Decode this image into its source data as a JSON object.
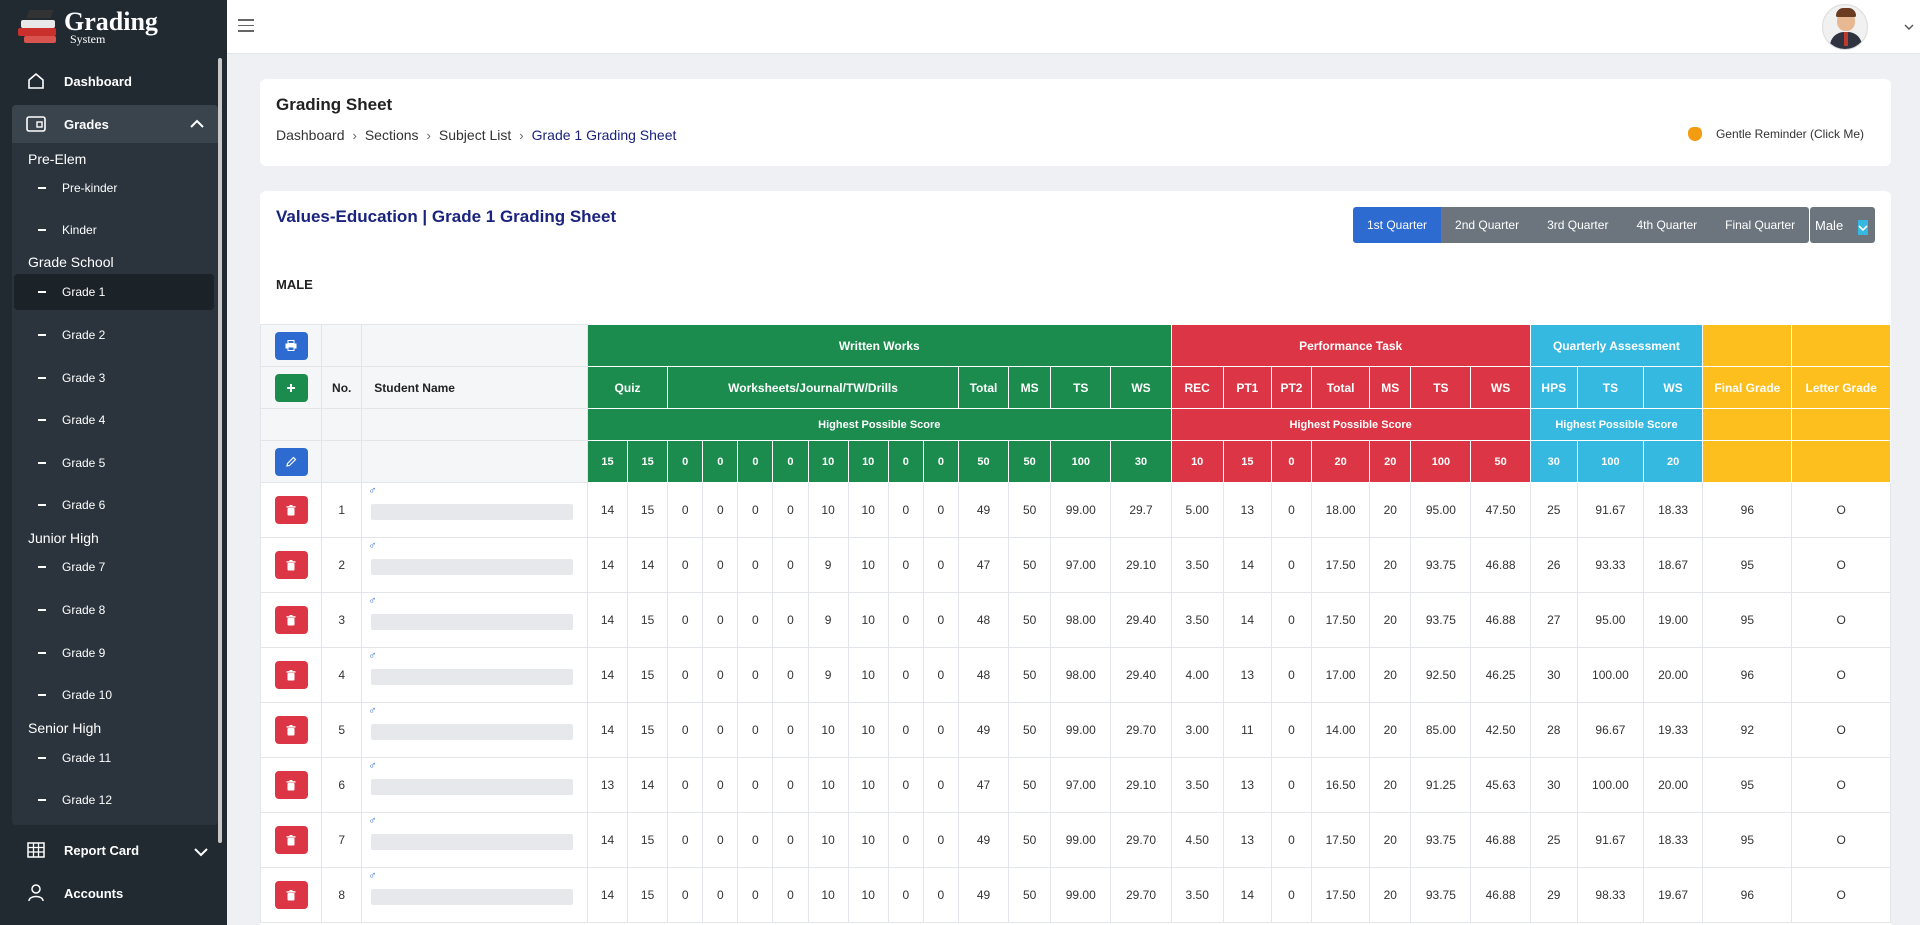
{
  "brand": {
    "title": "Grading",
    "subtitle": "System"
  },
  "sidebar": {
    "dashboard": "Dashboard",
    "grades": "Grades",
    "groups": [
      {
        "label": "Pre-Elem",
        "items": [
          "Pre-kinder",
          "Kinder"
        ]
      },
      {
        "label": "Grade School",
        "items": [
          "Grade 1",
          "Grade 2",
          "Grade 3",
          "Grade 4",
          "Grade 5",
          "Grade 6"
        ]
      },
      {
        "label": "Junior High",
        "items": [
          "Grade 7",
          "Grade 8",
          "Grade 9",
          "Grade 10"
        ]
      },
      {
        "label": "Senior High",
        "items": [
          "Grade 11",
          "Grade 12"
        ]
      }
    ],
    "active_item": "Grade 1",
    "report_card": "Report Card",
    "accounts": "Accounts"
  },
  "page": {
    "title": "Grading Sheet",
    "breadcrumb": [
      "Dashboard",
      "Sections",
      "Subject List",
      "Grade 1 Grading Sheet"
    ],
    "reminder": "Gentle Reminder (Click Me)"
  },
  "sheet": {
    "title": "Values-Education | Grade 1 Grading Sheet",
    "quarters": [
      "1st Quarter",
      "2nd Quarter",
      "3rd Quarter",
      "4th Quarter",
      "Final Quarter"
    ],
    "active_quarter": "1st Quarter",
    "sex_filter": "Male",
    "section_label": "MALE"
  },
  "table": {
    "groups": {
      "written": "Written Works",
      "performance": "Performance Task",
      "quarterly": "Quarterly Assessment"
    },
    "headers": {
      "no": "No.",
      "student_name": "Student Name",
      "quiz": "Quiz",
      "worksheets": "Worksheets/Journal/TW/Drills",
      "total": "Total",
      "ms": "MS",
      "ts": "TS",
      "ws": "WS",
      "rec": "REC",
      "pt1": "PT1",
      "pt2": "PT2",
      "hps": "HPS",
      "final_grade": "Final Grade",
      "letter_grade": "Letter Grade",
      "highest_possible_score": "Highest Possible Score"
    },
    "gender_symbol": "♂",
    "hps_values": [
      "15",
      "15",
      "0",
      "0",
      "0",
      "0",
      "10",
      "10",
      "0",
      "0",
      "50",
      "50",
      "100",
      "30",
      "10",
      "15",
      "0",
      "20",
      "20",
      "100",
      "50",
      "30",
      "100",
      "20"
    ],
    "rows": [
      {
        "no": "1",
        "cells": [
          "14",
          "15",
          "0",
          "0",
          "0",
          "0",
          "10",
          "10",
          "0",
          "0",
          "49",
          "50",
          "99.00",
          "29.7",
          "5.00",
          "13",
          "0",
          "18.00",
          "20",
          "95.00",
          "47.50",
          "25",
          "91.67",
          "18.33",
          "96",
          "O"
        ]
      },
      {
        "no": "2",
        "cells": [
          "14",
          "14",
          "0",
          "0",
          "0",
          "0",
          "9",
          "10",
          "0",
          "0",
          "47",
          "50",
          "97.00",
          "29.10",
          "3.50",
          "14",
          "0",
          "17.50",
          "20",
          "93.75",
          "46.88",
          "26",
          "93.33",
          "18.67",
          "95",
          "O"
        ]
      },
      {
        "no": "3",
        "cells": [
          "14",
          "15",
          "0",
          "0",
          "0",
          "0",
          "9",
          "10",
          "0",
          "0",
          "48",
          "50",
          "98.00",
          "29.40",
          "3.50",
          "14",
          "0",
          "17.50",
          "20",
          "93.75",
          "46.88",
          "27",
          "95.00",
          "19.00",
          "95",
          "O"
        ]
      },
      {
        "no": "4",
        "cells": [
          "14",
          "15",
          "0",
          "0",
          "0",
          "0",
          "9",
          "10",
          "0",
          "0",
          "48",
          "50",
          "98.00",
          "29.40",
          "4.00",
          "13",
          "0",
          "17.00",
          "20",
          "92.50",
          "46.25",
          "30",
          "100.00",
          "20.00",
          "96",
          "O"
        ]
      },
      {
        "no": "5",
        "cells": [
          "14",
          "15",
          "0",
          "0",
          "0",
          "0",
          "10",
          "10",
          "0",
          "0",
          "49",
          "50",
          "99.00",
          "29.70",
          "3.00",
          "11",
          "0",
          "14.00",
          "20",
          "85.00",
          "42.50",
          "28",
          "96.67",
          "19.33",
          "92",
          "O"
        ]
      },
      {
        "no": "6",
        "cells": [
          "13",
          "14",
          "0",
          "0",
          "0",
          "0",
          "10",
          "10",
          "0",
          "0",
          "47",
          "50",
          "97.00",
          "29.10",
          "3.50",
          "13",
          "0",
          "16.50",
          "20",
          "91.25",
          "45.63",
          "30",
          "100.00",
          "20.00",
          "95",
          "O"
        ]
      },
      {
        "no": "7",
        "cells": [
          "14",
          "15",
          "0",
          "0",
          "0",
          "0",
          "10",
          "10",
          "0",
          "0",
          "49",
          "50",
          "99.00",
          "29.70",
          "4.50",
          "13",
          "0",
          "17.50",
          "20",
          "93.75",
          "46.88",
          "25",
          "91.67",
          "18.33",
          "95",
          "O"
        ]
      },
      {
        "no": "8",
        "cells": [
          "14",
          "15",
          "0",
          "0",
          "0",
          "0",
          "10",
          "10",
          "0",
          "0",
          "49",
          "50",
          "99.00",
          "29.70",
          "3.50",
          "14",
          "0",
          "17.50",
          "20",
          "93.75",
          "46.88",
          "29",
          "98.33",
          "19.67",
          "96",
          "O"
        ]
      }
    ]
  },
  "colors": {
    "written": "#1b8c4e",
    "performance": "#dc3545",
    "quarterly": "#36b9e0",
    "final": "#fcbf1e",
    "active_quarter": "#2d6bd0"
  }
}
